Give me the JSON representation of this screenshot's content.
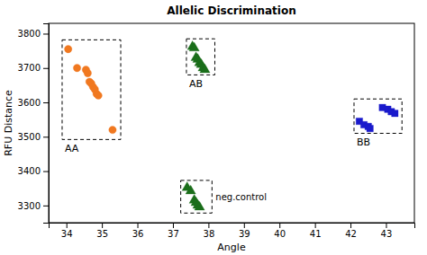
{
  "chart_data": {
    "type": "scatter",
    "title": "Allelic Discrimination",
    "xlabel": "Angle",
    "ylabel": "RFU Distance",
    "xlim": [
      33.5,
      43.8
    ],
    "ylim": [
      3250,
      3830
    ],
    "xticks": [
      34,
      35,
      36,
      37,
      38,
      39,
      40,
      41,
      42,
      43
    ],
    "yticks": [
      3300,
      3400,
      3500,
      3600,
      3700,
      3800
    ],
    "grid": false,
    "series": [
      {
        "name": "AA",
        "color": "#F07820",
        "marker": "circle",
        "x": [
          34.05,
          34.3,
          34.55,
          34.6,
          34.65,
          34.7,
          34.75,
          34.8,
          34.85,
          34.9,
          35.3
        ],
        "y": [
          3755,
          3700,
          3695,
          3685,
          3660,
          3655,
          3645,
          3638,
          3625,
          3620,
          3520
        ],
        "box": {
          "x": 33.88,
          "y": 3492,
          "width": 1.65,
          "height": 290
        }
      },
      {
        "name": "AB",
        "color": "#1a6e1a",
        "marker": "triangle",
        "x": [
          37.55,
          37.6,
          37.65,
          37.7,
          37.75,
          37.8,
          37.85,
          37.9
        ],
        "y": [
          3762,
          3758,
          3730,
          3725,
          3715,
          3710,
          3700,
          3695
        ],
        "box": {
          "x": 37.38,
          "y": 3680,
          "width": 0.8,
          "height": 105
        }
      },
      {
        "name": "neg.control",
        "color": "#1a6e1a",
        "marker": "triangle",
        "x": [
          37.4,
          37.5,
          37.6,
          37.65,
          37.7,
          37.75
        ],
        "y": [
          3352,
          3342,
          3315,
          3308,
          3300,
          3295
        ],
        "box": {
          "x": 37.22,
          "y": 3278,
          "width": 0.88,
          "height": 95
        }
      },
      {
        "name": "BB",
        "color": "#1a1acc",
        "marker": "square",
        "x": [
          42.25,
          42.38,
          42.5,
          42.55,
          42.9,
          43.05,
          43.15,
          43.25
        ],
        "y": [
          3545,
          3535,
          3530,
          3524,
          3585,
          3580,
          3573,
          3568
        ],
        "box": {
          "x": 42.1,
          "y": 3510,
          "width": 1.35,
          "height": 100
        }
      }
    ]
  }
}
